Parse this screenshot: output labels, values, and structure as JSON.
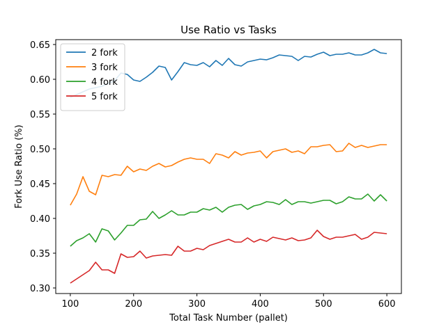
{
  "chart_data": {
    "type": "line",
    "title": "Use Ratio vs Tasks",
    "xlabel": "Total Task Number (pallet)",
    "ylabel": "Fork Use Ratio (%)",
    "xlim": [
      77,
      623
    ],
    "ylim": [
      0.292,
      0.657
    ],
    "xticks": [
      100,
      200,
      300,
      400,
      500,
      600
    ],
    "yticks": [
      0.3,
      0.35,
      0.4,
      0.45,
      0.5,
      0.55,
      0.6,
      0.65
    ],
    "ytick_labels": [
      "0.30",
      "0.35",
      "0.40",
      "0.45",
      "0.50",
      "0.55",
      "0.60",
      "0.65"
    ],
    "grid": false,
    "legend_position": "top-left",
    "x": [
      100,
      110,
      120,
      130,
      140,
      150,
      160,
      170,
      180,
      190,
      200,
      210,
      220,
      230,
      240,
      250,
      260,
      270,
      280,
      290,
      300,
      310,
      320,
      330,
      340,
      350,
      360,
      370,
      380,
      390,
      400,
      410,
      420,
      430,
      440,
      450,
      460,
      470,
      480,
      490,
      500,
      510,
      520,
      530,
      540,
      550,
      560,
      570,
      580,
      590,
      600
    ],
    "series": [
      {
        "name": "2 fork",
        "color": "#1f77b4",
        "values": [
          0.574,
          0.578,
          0.582,
          0.586,
          0.588,
          0.59,
          0.594,
          0.598,
          0.609,
          0.607,
          0.599,
          0.597,
          0.603,
          0.61,
          0.619,
          0.617,
          0.599,
          0.611,
          0.624,
          0.621,
          0.62,
          0.624,
          0.618,
          0.627,
          0.62,
          0.63,
          0.621,
          0.619,
          0.625,
          0.627,
          0.629,
          0.628,
          0.631,
          0.635,
          0.634,
          0.633,
          0.627,
          0.633,
          0.632,
          0.636,
          0.639,
          0.634,
          0.636,
          0.636,
          0.638,
          0.635,
          0.635,
          0.638,
          0.643,
          0.638,
          0.637
        ]
      },
      {
        "name": "3 fork",
        "color": "#ff7f0e",
        "values": [
          0.419,
          0.435,
          0.46,
          0.439,
          0.434,
          0.462,
          0.46,
          0.463,
          0.462,
          0.475,
          0.467,
          0.471,
          0.469,
          0.475,
          0.479,
          0.474,
          0.476,
          0.481,
          0.485,
          0.487,
          0.485,
          0.485,
          0.479,
          0.493,
          0.491,
          0.487,
          0.496,
          0.491,
          0.494,
          0.495,
          0.497,
          0.487,
          0.496,
          0.498,
          0.5,
          0.495,
          0.497,
          0.493,
          0.503,
          0.503,
          0.505,
          0.506,
          0.496,
          0.497,
          0.508,
          0.502,
          0.505,
          0.502,
          0.504,
          0.506,
          0.506
        ]
      },
      {
        "name": "4 fork",
        "color": "#2ca02c",
        "values": [
          0.36,
          0.368,
          0.372,
          0.378,
          0.366,
          0.385,
          0.382,
          0.369,
          0.379,
          0.39,
          0.39,
          0.398,
          0.399,
          0.41,
          0.4,
          0.405,
          0.411,
          0.405,
          0.405,
          0.409,
          0.409,
          0.414,
          0.412,
          0.416,
          0.409,
          0.416,
          0.419,
          0.42,
          0.413,
          0.418,
          0.42,
          0.424,
          0.423,
          0.42,
          0.427,
          0.42,
          0.424,
          0.424,
          0.422,
          0.424,
          0.426,
          0.426,
          0.421,
          0.424,
          0.431,
          0.428,
          0.428,
          0.435,
          0.425,
          0.434,
          0.425
        ]
      },
      {
        "name": "5 fork",
        "color": "#d62728",
        "values": [
          0.307,
          0.313,
          0.319,
          0.325,
          0.337,
          0.326,
          0.326,
          0.321,
          0.349,
          0.344,
          0.345,
          0.353,
          0.343,
          0.346,
          0.347,
          0.348,
          0.347,
          0.36,
          0.353,
          0.353,
          0.357,
          0.355,
          0.361,
          0.364,
          0.367,
          0.37,
          0.366,
          0.366,
          0.372,
          0.366,
          0.37,
          0.367,
          0.373,
          0.371,
          0.369,
          0.372,
          0.368,
          0.369,
          0.372,
          0.383,
          0.374,
          0.37,
          0.373,
          0.373,
          0.375,
          0.377,
          0.37,
          0.373,
          0.38,
          0.379,
          0.378
        ]
      }
    ]
  }
}
